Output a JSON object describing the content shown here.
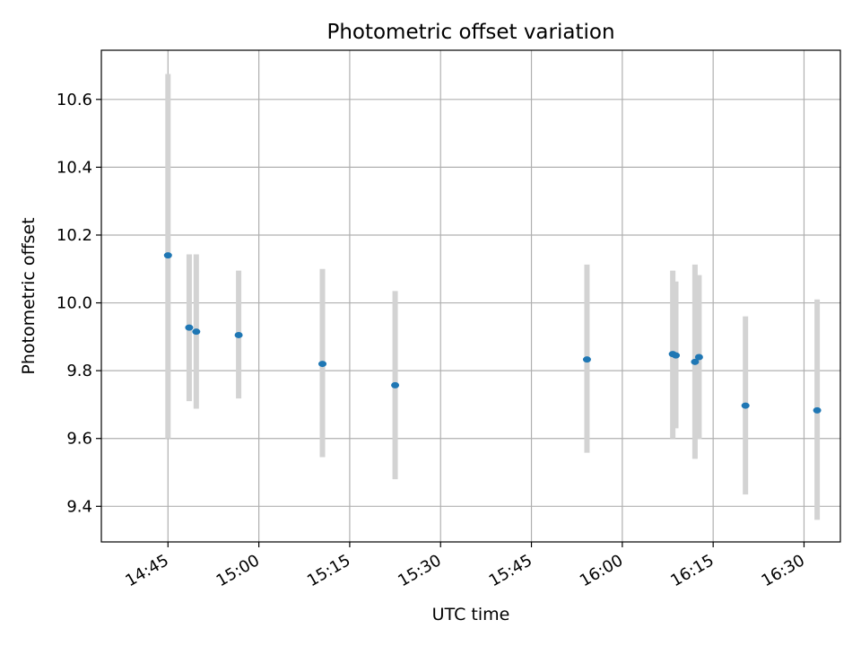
{
  "chart_data": {
    "type": "scatter",
    "title": "Photometric offset variation",
    "xlabel": "UTC time",
    "ylabel": "Photometric offset",
    "x_unit": "UTC time (HH:MM)",
    "xlim": [
      "14:34:00",
      "16:36:00"
    ],
    "ylim": [
      9.295,
      10.745
    ],
    "grid": true,
    "marker_color": "#1f77b4",
    "errorbar_color": "#d3d3d3",
    "x_ticks": [
      "14:45",
      "15:00",
      "15:15",
      "15:30",
      "15:45",
      "16:00",
      "16:15",
      "16:30"
    ],
    "y_ticks": [
      9.4,
      9.6,
      9.8,
      10.0,
      10.2,
      10.4,
      10.6
    ],
    "y_tick_labels": [
      "9.4",
      "9.6",
      "9.8",
      "10.0",
      "10.2",
      "10.4",
      "10.6"
    ],
    "points": [
      {
        "time": "14:45:00",
        "y": 10.14,
        "err_low": 9.6,
        "err_high": 10.675
      },
      {
        "time": "14:48:30",
        "y": 9.927,
        "err_low": 9.71,
        "err_high": 10.143
      },
      {
        "time": "14:49:40",
        "y": 9.915,
        "err_low": 9.688,
        "err_high": 10.143
      },
      {
        "time": "14:56:40",
        "y": 9.905,
        "err_low": 9.718,
        "err_high": 10.095
      },
      {
        "time": "15:10:30",
        "y": 9.82,
        "err_low": 9.545,
        "err_high": 10.1
      },
      {
        "time": "15:22:30",
        "y": 9.757,
        "err_low": 9.48,
        "err_high": 10.035
      },
      {
        "time": "15:54:10",
        "y": 9.833,
        "err_low": 9.558,
        "err_high": 10.113
      },
      {
        "time": "16:08:20",
        "y": 9.849,
        "err_low": 9.6,
        "err_high": 10.095
      },
      {
        "time": "16:08:50",
        "y": 9.845,
        "err_low": 9.63,
        "err_high": 10.063
      },
      {
        "time": "16:12:00",
        "y": 9.826,
        "err_low": 9.54,
        "err_high": 10.113
      },
      {
        "time": "16:12:40",
        "y": 9.84,
        "err_low": 9.598,
        "err_high": 10.082
      },
      {
        "time": "16:20:20",
        "y": 9.697,
        "err_low": 9.435,
        "err_high": 9.96
      },
      {
        "time": "16:32:10",
        "y": 9.683,
        "err_low": 9.36,
        "err_high": 10.01
      }
    ]
  }
}
